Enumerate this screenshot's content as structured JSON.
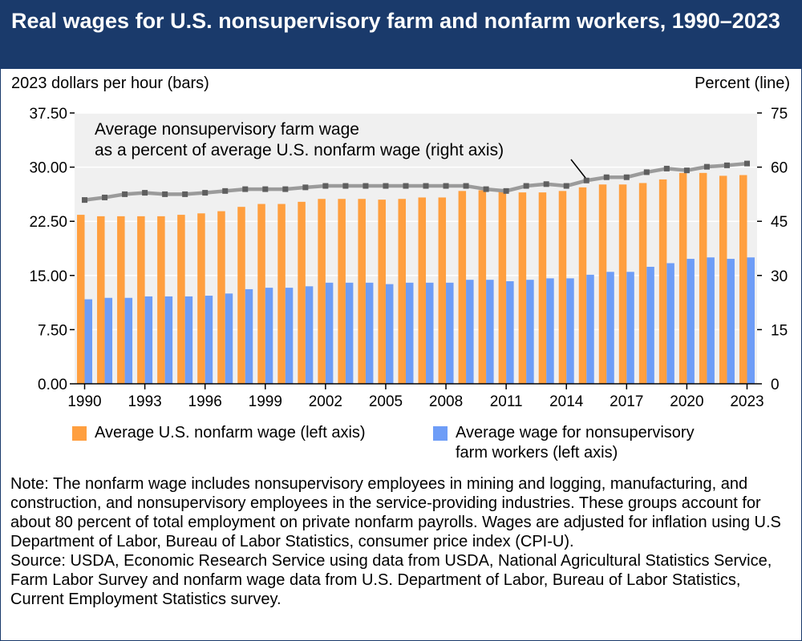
{
  "title": "Real wages for U.S. nonsupervisory farm and nonfarm workers, 1990–2023",
  "left_axis_title": "2023 dollars per hour (bars)",
  "right_axis_title": "Percent (line)",
  "annotation": {
    "line1": "Average nonsupervisory farm wage",
    "line2": "as a percent of average U.S. nonfarm wage (right axis)"
  },
  "legend": {
    "nonfarm": "Average U.S. nonfarm wage (left axis)",
    "farm_line1": "Average wage for nonsupervisory",
    "farm_line2": "farm workers (left axis)"
  },
  "note": "Note: The nonfarm wage includes nonsupervisory employees in mining and logging, manufacturing, and construction, and nonsupervisory employees in the service-providing industries. These groups account for about 80 percent of total employment on private nonfarm payrolls. Wages are adjusted for inflation using U.S Department of Labor, Bureau of Labor Statistics, consumer price index (CPI-U).",
  "source": "Source: USDA, Economic Research Service using data from USDA, National Agricultural Statistics Service, Farm Labor Survey and nonfarm wage data from U.S. Department of Labor, Bureau of Labor Statistics, Current Employment Statistics survey.",
  "colors": {
    "header": "#1a3a6b",
    "nonfarm": "#ff9f3f",
    "farm": "#6e9df7",
    "line": "#9b9b9b",
    "marker": "#5f5f5f",
    "plot_bg": "#f0f0f0"
  },
  "chart_data": {
    "type": "bar",
    "x": [
      1990,
      1991,
      1992,
      1993,
      1994,
      1995,
      1996,
      1997,
      1998,
      1999,
      2000,
      2001,
      2002,
      2003,
      2004,
      2005,
      2006,
      2007,
      2008,
      2009,
      2010,
      2011,
      2012,
      2013,
      2014,
      2015,
      2016,
      2017,
      2018,
      2019,
      2020,
      2021,
      2022,
      2023
    ],
    "x_tick_labels": [
      "1990",
      "1993",
      "1996",
      "1999",
      "2002",
      "2005",
      "2008",
      "2011",
      "2014",
      "2017",
      "2020",
      "2023"
    ],
    "left_ticks": [
      "0.00",
      "7.50",
      "15.00",
      "22.50",
      "30.00",
      "37.50"
    ],
    "right_ticks": [
      "0",
      "15",
      "30",
      "45",
      "60",
      "75"
    ],
    "ylim_left": [
      0,
      37.5
    ],
    "ylim_right": [
      0,
      75
    ],
    "series": [
      {
        "name": "Average U.S. nonfarm wage (left axis)",
        "axis": "left",
        "type": "bar",
        "values": [
          23.4,
          23.2,
          23.2,
          23.2,
          23.2,
          23.4,
          23.6,
          23.9,
          24.5,
          24.9,
          24.9,
          25.2,
          25.6,
          25.6,
          25.6,
          25.5,
          25.6,
          25.8,
          25.8,
          26.7,
          26.8,
          26.6,
          26.5,
          26.5,
          26.7,
          27.2,
          27.6,
          27.6,
          27.8,
          28.3,
          29.2,
          29.2,
          28.8,
          28.9
        ]
      },
      {
        "name": "Average wage for nonsupervisory farm workers (left axis)",
        "axis": "left",
        "type": "bar",
        "values": [
          11.7,
          11.9,
          11.9,
          12.1,
          12.1,
          12.1,
          12.2,
          12.5,
          13.1,
          13.3,
          13.3,
          13.5,
          14.0,
          14.0,
          14.0,
          13.8,
          14.0,
          14.0,
          14.0,
          14.4,
          14.4,
          14.2,
          14.4,
          14.6,
          14.6,
          15.1,
          15.5,
          15.5,
          16.2,
          16.7,
          17.3,
          17.5,
          17.3,
          17.5
        ]
      },
      {
        "name": "Average nonsupervisory farm wage as a percent of average U.S. nonfarm wage (right axis)",
        "axis": "right",
        "type": "line",
        "values": [
          50.9,
          51.6,
          52.5,
          52.9,
          52.5,
          52.5,
          52.9,
          53.4,
          53.9,
          53.9,
          53.9,
          54.4,
          54.8,
          54.8,
          54.8,
          54.8,
          54.8,
          54.8,
          54.8,
          54.8,
          53.9,
          53.4,
          54.8,
          55.3,
          54.8,
          56.3,
          57.2,
          57.2,
          58.6,
          59.6,
          59.1,
          60.1,
          60.5,
          61.0
        ]
      }
    ]
  }
}
